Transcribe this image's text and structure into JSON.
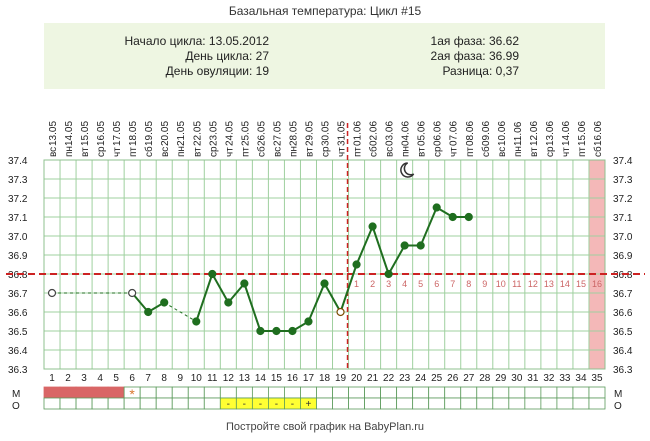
{
  "title": "Базальная температура: Цикл #15",
  "info": {
    "cycle_start": "Начало цикла: 13.05.2012",
    "cycle_day": "День цикла: 27",
    "ovulation_day": "День овуляции: 19",
    "phase1": "1ая фаза: 36.62",
    "phase2": "2ая фаза: 36.99",
    "difference": "Разница: 0,37"
  },
  "footer": "Постройте свой график на BabyPlan.ru",
  "colors": {
    "line": "#1f6e1f",
    "point": "#1f6e1f",
    "coverline": "#cc2222",
    "ovulation_line": "#cc2222",
    "grid": "#9fd09f",
    "period": "#d96666",
    "highlight_cell": "#ffff33",
    "future_band": "#f4b8b8",
    "phase2_numbers": "#cc6666"
  },
  "icons": {
    "moon": "moon-icon",
    "asterisk": "asterisk-icon"
  },
  "chart_data": {
    "type": "line",
    "dates": [
      "13.05",
      "14.05",
      "15.05",
      "16.05",
      "17.05",
      "18.05",
      "19.05",
      "20.05",
      "21.05",
      "22.05",
      "23.05",
      "24.05",
      "25.05",
      "26.05",
      "27.05",
      "28.05",
      "29.05",
      "30.05",
      "31.05",
      "01.06",
      "02.06",
      "03.06",
      "04.06",
      "05.06",
      "06.06",
      "07.06",
      "08.06",
      "09.06",
      "10.06",
      "11.06",
      "12.06",
      "13.06",
      "14.06",
      "15.06",
      "16.06"
    ],
    "weekdays": [
      "вс",
      "пн",
      "вт",
      "ср",
      "чт",
      "пт",
      "сб",
      "вс",
      "пн",
      "вт",
      "ср",
      "чт",
      "пт",
      "сб",
      "вс",
      "пн",
      "вт",
      "ср",
      "чт",
      "пт",
      "сб",
      "вс",
      "пн",
      "вт",
      "ср",
      "чт",
      "пт",
      "сб",
      "вс",
      "пн",
      "вт",
      "ср",
      "чт",
      "пт",
      "сб"
    ],
    "days": [
      1,
      2,
      3,
      4,
      5,
      6,
      7,
      8,
      9,
      10,
      11,
      12,
      13,
      14,
      15,
      16,
      17,
      18,
      19,
      20,
      21,
      22,
      23,
      24,
      25,
      26,
      27,
      28,
      29,
      30,
      31,
      32,
      33,
      34,
      35
    ],
    "temperature": [
      36.7,
      null,
      null,
      null,
      null,
      36.7,
      36.6,
      36.65,
      null,
      36.55,
      36.8,
      36.65,
      36.75,
      36.5,
      36.5,
      36.5,
      36.55,
      36.75,
      36.6,
      36.85,
      37.05,
      36.8,
      36.95,
      36.95,
      37.15,
      37.1,
      37.1,
      null,
      null,
      null,
      null,
      null,
      null,
      null,
      null
    ],
    "open_points": [
      1,
      6,
      19
    ],
    "dashed_segments": [
      [
        1,
        6
      ],
      [
        8,
        10
      ]
    ],
    "y_ticks": [
      36.3,
      36.4,
      36.5,
      36.6,
      36.7,
      36.8,
      36.9,
      37.0,
      37.1,
      37.2,
      37.3,
      37.4
    ],
    "ylim": [
      36.3,
      37.4
    ],
    "coverline": 36.8,
    "ovulation_day": 19,
    "phase2_numbers": [
      "1",
      "2",
      "3",
      "4",
      "5",
      "6",
      "7",
      "8",
      "9",
      "10",
      "11",
      "12",
      "13",
      "14",
      "15",
      "16"
    ],
    "future_day": 35,
    "row_labels": [
      "М",
      "О"
    ],
    "m_row": {
      "period_days": [
        1,
        2,
        3,
        4,
        5
      ],
      "asterisk_day": 6,
      "asterisk": "*"
    },
    "o_row": {
      "highlight_days": [
        12,
        13,
        14,
        15,
        16,
        17
      ],
      "marks": [
        "-",
        "-",
        "-",
        "-",
        "-",
        "+"
      ]
    }
  }
}
